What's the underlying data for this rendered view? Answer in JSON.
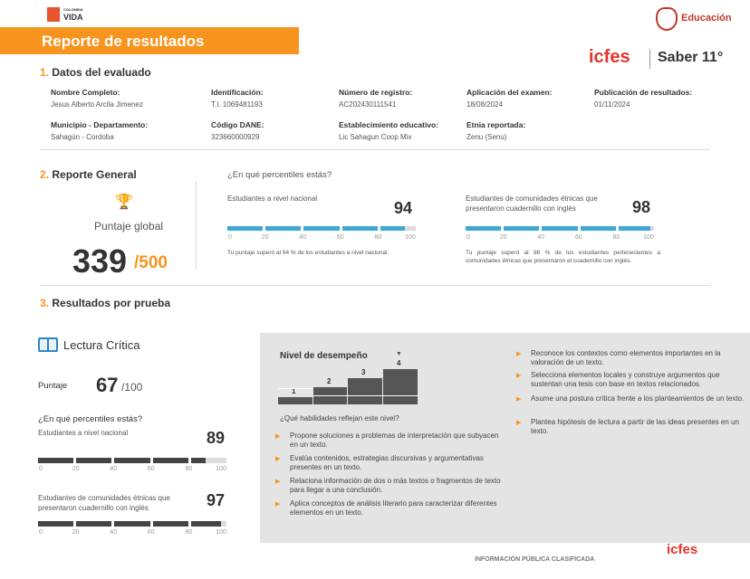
{
  "header": {
    "logo_small": "COLOMBIA",
    "logo_main": "VIDA",
    "title": "Reporte de resultados",
    "ministry": "Educación",
    "brand": "icfes",
    "exam": "Saber 11°"
  },
  "section1": {
    "num": "1.",
    "title": "Datos del evaluado",
    "fields": [
      {
        "label": "Nombre Completo:",
        "value": "Jesus Alberto Arcila Jimenez"
      },
      {
        "label": "Identificación:",
        "value": "T.I. 1069481193"
      },
      {
        "label": "Número de registro:",
        "value": "AC202430111541"
      },
      {
        "label": "Aplicación del examen:",
        "value": "18/08/2024"
      },
      {
        "label": "Publicación de resultados:",
        "value": "01/11/2024"
      },
      {
        "label": "Municipio - Departamento:",
        "value": "Sahagún -  Cordoba"
      },
      {
        "label": "Código DANE:",
        "value": "323660000929"
      },
      {
        "label": "Establecimiento educativo:",
        "value": "Lic Sahagun Coop Mix"
      },
      {
        "label": "Etnia reportada:",
        "value": "Zenu (Senu)"
      }
    ]
  },
  "section2": {
    "num": "2.",
    "title": "Reporte General",
    "puntaje_label": "Puntaje global",
    "score": "339",
    "score_out": "/500",
    "percentile_q": "¿En qué percentiles estás?",
    "national": {
      "label": "Estudiantes a nivel nacional",
      "value": "94",
      "fraction": 0.94,
      "note": "Tu puntaje superó al 94 % de los estudiantes a nivel nacional."
    },
    "ethnic": {
      "label": "Estudiantes de comunidades étnicas que presentaron cuadernillo con inglés",
      "value": "98",
      "fraction": 0.98,
      "note": "Tu puntaje superó al 98 % de los estudiantes pertenecientes a comunidades étnicas que presentaron el cuadernillo con inglés."
    },
    "ticks": [
      "0",
      "20",
      "40",
      "60",
      "80",
      "100"
    ],
    "bar_color": "#3fa9d6"
  },
  "section3": {
    "num": "3.",
    "title": "Resultados por prueba",
    "test_name": "Lectura Crítica",
    "puntaje_label": "Puntaje",
    "score": "67",
    "score_out": "/100",
    "percentile_q": "¿En qué percentiles estás?",
    "national": {
      "label": "Estudiantes a nivel nacional",
      "value": "89",
      "fraction": 0.89
    },
    "ethnic": {
      "label": "Estudiantes de comunidades étnicas que presentaron cuadernillo con inglés",
      "value": "97",
      "fraction": 0.97
    },
    "ticks": [
      "0",
      "20",
      "40",
      "60",
      "80",
      "100"
    ],
    "bar_color": "#444444",
    "nivel_title": "Nivel de desempeño",
    "nivel_current": 4,
    "levels": [
      "1",
      "2",
      "3",
      "4"
    ],
    "hab_question": "¿Qué habilidades reflejan este nivel?",
    "skills_left": [
      "Propone soluciones a problemas de interpretación que subyacen en un texto.",
      "Evalúa contenidos, estrategias discursivas y argumentativas presentes en un texto.",
      "Relaciona información de dos o más textos o fragmentos de texto para llegar a una conclusión.",
      "Aplica conceptos de análisis literario para caracterizar diferentes elementos en un texto."
    ],
    "skills_right": [
      "Reconoce los contextos como elementos importantes en la valoración de un texto.",
      "Selecciona elementos locales y construye argumentos que sustentan una tesis con base en textos relacionados.",
      "Asume una postura crítica frente a los planteamientos de un texto.",
      "Plantea hipótesis de lectura a partir de las ideas presentes en un texto."
    ]
  },
  "footer": {
    "classification": "INFORMACIÓN PÚBLICA CLASIFICADA",
    "brand": "icfes"
  },
  "colors": {
    "accent": "#f7941e",
    "brand_red": "#e63329"
  }
}
